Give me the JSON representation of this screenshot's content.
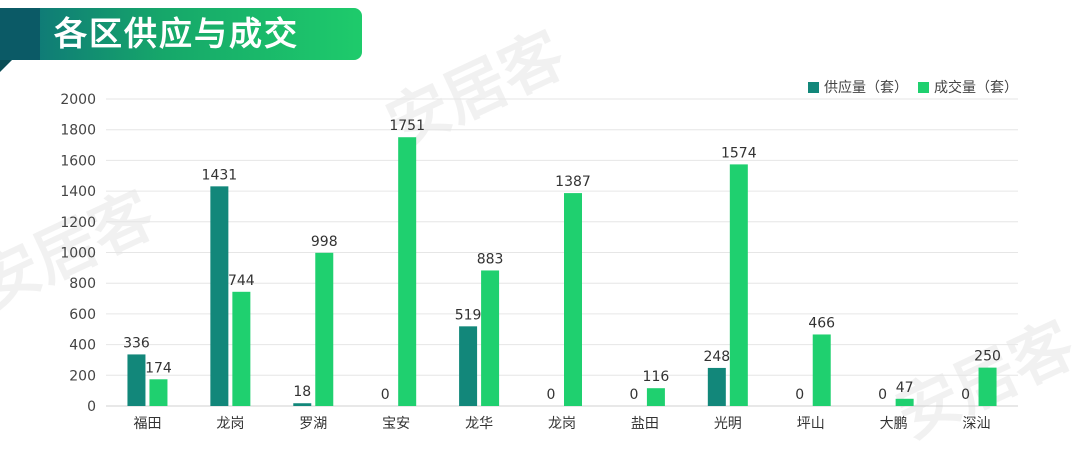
{
  "header": {
    "title": "各区供应与成交"
  },
  "watermark": {
    "text": "安居客"
  },
  "colors": {
    "supply": "#12877a",
    "deal": "#1fd06f",
    "grid": "#e6e6e6",
    "label": "#333333"
  },
  "chart_data": {
    "type": "bar",
    "categories": [
      "福田",
      "龙岗",
      "罗湖",
      "宝安",
      "龙华",
      "龙岗",
      "盐田",
      "光明",
      "坪山",
      "大鹏",
      "深汕"
    ],
    "series": [
      {
        "name": "供应量（套）",
        "values": [
          336,
          1431,
          18,
          0,
          519,
          0,
          0,
          248,
          0,
          0,
          0
        ]
      },
      {
        "name": "成交量（套）",
        "values": [
          174,
          744,
          998,
          1751,
          883,
          1387,
          116,
          1574,
          466,
          47,
          250
        ]
      }
    ],
    "ylim": [
      0,
      2000
    ],
    "yticks": [
      0,
      200,
      400,
      600,
      800,
      1000,
      1200,
      1400,
      1600,
      1800,
      2000
    ],
    "grid": true,
    "legend_position": "top-right"
  }
}
